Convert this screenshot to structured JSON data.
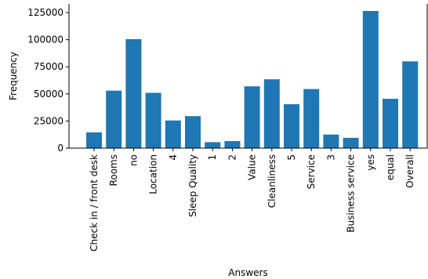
{
  "chart_data": {
    "type": "bar",
    "categories": [
      "Check in / front desk",
      "Rooms",
      "no",
      "Location",
      "4",
      "Sleep Quality",
      "1",
      "2",
      "Value",
      "Cleanliness",
      "5",
      "Service",
      "3",
      "Business service",
      "yes",
      "equal",
      "Overall"
    ],
    "values": [
      14500,
      53000,
      100500,
      51000,
      25500,
      29500,
      5500,
      6500,
      57000,
      63500,
      40500,
      54500,
      12500,
      9500,
      126500,
      45500,
      80000
    ],
    "xlabel": "Answers",
    "ylabel": "Frequency",
    "ylim": [
      0,
      133000
    ],
    "yticks": [
      0,
      25000,
      50000,
      75000,
      100000,
      125000
    ],
    "grid": false,
    "colors": {
      "bar": "#1f77b4"
    }
  }
}
